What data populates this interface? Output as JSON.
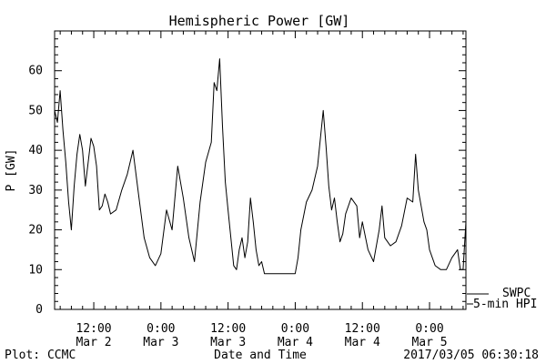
{
  "chart_data": {
    "type": "line",
    "title": "Hemispheric Power [GW]",
    "ylabel": "P [GW]",
    "xlabel": "Date and Time",
    "ylim": [
      0,
      70
    ],
    "yticks": [
      0,
      10,
      20,
      30,
      40,
      50,
      60
    ],
    "xlim": [
      "2017-03-02 05:00",
      "2017-03-05 06:30"
    ],
    "xticks": [
      {
        "t": "2017-03-02 12:00",
        "line1": "12:00",
        "line2": "Mar 2"
      },
      {
        "t": "2017-03-03 00:00",
        "line1": "0:00",
        "line2": "Mar 3"
      },
      {
        "t": "2017-03-03 12:00",
        "line1": "12:00",
        "line2": "Mar 3"
      },
      {
        "t": "2017-03-04 00:00",
        "line1": "0:00",
        "line2": "Mar 4"
      },
      {
        "t": "2017-03-04 12:00",
        "line1": "12:00",
        "line2": "Mar 4"
      },
      {
        "t": "2017-03-05 00:00",
        "line1": "0:00",
        "line2": "Mar 5"
      }
    ],
    "legend": [
      {
        "label": "SWPC",
        "style": "solid"
      },
      {
        "label": "5-min HPI",
        "style": "solid"
      }
    ],
    "legend_position": "right-bottom-outside",
    "grid": false,
    "series": [
      {
        "x": [
          "2017-03-02 05:00",
          "2017-03-02 05:30",
          "2017-03-02 06:00",
          "2017-03-02 06:30",
          "2017-03-02 07:00",
          "2017-03-02 07:30",
          "2017-03-02 08:00",
          "2017-03-02 08:30",
          "2017-03-02 09:00",
          "2017-03-02 09:30",
          "2017-03-02 10:00",
          "2017-03-02 10:30",
          "2017-03-02 11:00",
          "2017-03-02 11:30",
          "2017-03-02 12:00",
          "2017-03-02 12:30",
          "2017-03-02 13:00",
          "2017-03-02 13:30",
          "2017-03-02 14:00",
          "2017-03-02 14:30",
          "2017-03-02 15:00",
          "2017-03-02 16:00",
          "2017-03-02 17:00",
          "2017-03-02 18:00",
          "2017-03-02 19:00",
          "2017-03-02 20:00",
          "2017-03-02 21:00",
          "2017-03-02 22:00",
          "2017-03-02 23:00",
          "2017-03-03 00:00",
          "2017-03-03 01:00",
          "2017-03-03 02:00",
          "2017-03-03 03:00",
          "2017-03-03 04:00",
          "2017-03-03 05:00",
          "2017-03-03 06:00",
          "2017-03-03 07:00",
          "2017-03-03 08:00",
          "2017-03-03 09:00",
          "2017-03-03 09:30",
          "2017-03-03 10:00",
          "2017-03-03 10:30",
          "2017-03-03 11:00",
          "2017-03-03 11:30",
          "2017-03-03 12:00",
          "2017-03-03 12:30",
          "2017-03-03 13:00",
          "2017-03-03 13:30",
          "2017-03-03 14:00",
          "2017-03-03 14:30",
          "2017-03-03 15:00",
          "2017-03-03 15:30",
          "2017-03-03 16:00",
          "2017-03-03 16:30",
          "2017-03-03 17:00",
          "2017-03-03 17:30",
          "2017-03-03 18:00",
          "2017-03-03 18:30",
          "2017-03-03 19:00",
          "2017-03-03 20:00",
          "2017-03-03 21:00",
          "2017-03-03 22:00",
          "2017-03-04 00:00",
          "2017-03-04 00:30",
          "2017-03-04 01:00",
          "2017-03-04 02:00",
          "2017-03-04 03:00",
          "2017-03-04 04:00",
          "2017-03-04 05:00",
          "2017-03-04 05:30",
          "2017-03-04 06:00",
          "2017-03-04 06:30",
          "2017-03-04 07:00",
          "2017-03-04 07:30",
          "2017-03-04 08:00",
          "2017-03-04 08:30",
          "2017-03-04 09:00",
          "2017-03-04 10:00",
          "2017-03-04 11:00",
          "2017-03-04 11:30",
          "2017-03-04 12:00",
          "2017-03-04 13:00",
          "2017-03-04 14:00",
          "2017-03-04 15:00",
          "2017-03-04 15:30",
          "2017-03-04 16:00",
          "2017-03-04 17:00",
          "2017-03-04 18:00",
          "2017-03-04 19:00",
          "2017-03-04 20:00",
          "2017-03-04 21:00",
          "2017-03-04 21:30",
          "2017-03-04 22:00",
          "2017-03-04 22:30",
          "2017-03-04 23:00",
          "2017-03-04 23:30",
          "2017-03-05 00:00",
          "2017-03-05 00:30",
          "2017-03-05 01:00",
          "2017-03-05 02:00",
          "2017-03-05 03:00",
          "2017-03-05 04:00",
          "2017-03-05 05:00",
          "2017-03-05 05:30",
          "2017-03-05 06:00",
          "2017-03-05 06:30"
        ],
        "values": [
          50,
          47,
          55,
          45,
          37,
          27,
          20,
          31,
          39,
          44,
          40,
          31,
          37,
          43,
          41,
          36,
          25,
          26,
          29,
          27,
          24,
          25,
          30,
          34,
          40,
          29,
          18,
          13,
          11,
          14,
          25,
          20,
          36,
          28,
          18,
          12,
          27,
          37,
          42,
          57,
          55,
          63,
          46,
          32,
          25,
          18,
          11,
          10,
          15,
          18,
          13,
          17,
          28,
          22,
          15,
          11,
          12,
          9,
          9,
          9,
          9,
          9,
          9,
          13,
          20,
          27,
          30,
          36,
          50,
          41,
          31,
          25,
          28,
          22,
          17,
          19,
          24,
          28,
          26,
          18,
          22,
          15,
          12,
          20,
          26,
          18,
          16,
          17,
          21,
          28,
          27,
          39,
          30,
          26,
          22,
          20,
          15,
          13,
          11,
          10,
          10,
          13,
          15,
          10,
          10,
          22
        ]
      }
    ]
  },
  "footer": {
    "left": "Plot: CCMC",
    "right": "2017/03/05 06:30:18"
  }
}
